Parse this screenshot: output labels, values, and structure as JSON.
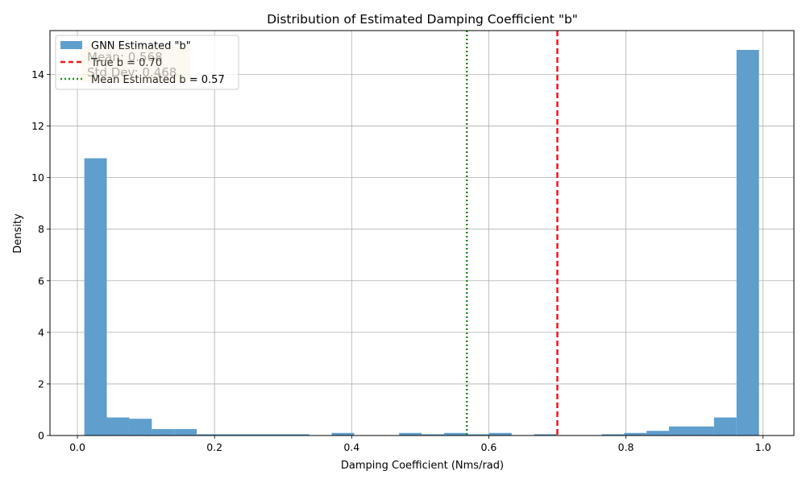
{
  "chart_data": {
    "type": "bar",
    "title": "Distribution of Estimated Damping Coefficient \"b\"",
    "xlabel": "Damping Coefficient (Nms/rad)",
    "ylabel": "Density",
    "xlim": [
      -0.04,
      1.045
    ],
    "ylim": [
      0,
      15.7
    ],
    "xticks": [
      "0.0",
      "0.2",
      "0.4",
      "0.6",
      "0.8",
      "1.0"
    ],
    "xtick_values": [
      0.0,
      0.2,
      0.4,
      0.6,
      0.8,
      1.0
    ],
    "yticks": [
      "0",
      "2",
      "4",
      "6",
      "8",
      "10",
      "12",
      "14"
    ],
    "ytick_values": [
      0,
      2,
      4,
      6,
      8,
      10,
      12,
      14
    ],
    "grid": true,
    "legend_position": "top-left",
    "bin_start": 0.0101,
    "bin_width": 0.0328,
    "series": [
      {
        "name": "GNN Estimated \"b\"",
        "color": "#5f9ecd",
        "values": [
          10.75,
          0.7,
          0.65,
          0.25,
          0.25,
          0.05,
          0.05,
          0.05,
          0.05,
          0.05,
          0,
          0.1,
          0,
          0,
          0.1,
          0.05,
          0.1,
          0.05,
          0.1,
          0,
          0.05,
          0,
          0,
          0.05,
          0.1,
          0.18,
          0.35,
          0.35,
          0.7,
          14.95
        ]
      }
    ],
    "reference_lines": [
      {
        "name": "True b = 0.70",
        "x": 0.7,
        "color": "#e41a1c",
        "style": "dashed"
      },
      {
        "name": "Mean Estimated b = 0.57",
        "x": 0.568,
        "color": "#228b22",
        "style": "dotted"
      }
    ],
    "annotations": {
      "mean": "Mean: 0.568",
      "std": "Std Dev: 0.468"
    }
  }
}
